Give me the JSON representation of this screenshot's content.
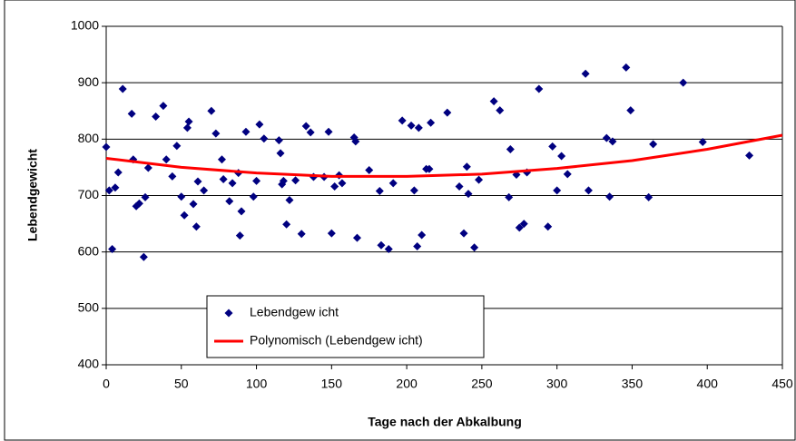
{
  "chart_data": {
    "type": "scatter",
    "xlabel": "Tage nach der Abkalbung",
    "ylabel": "Lebendgewicht",
    "xlim": [
      0,
      450
    ],
    "xticks": [
      0,
      50,
      100,
      150,
      200,
      250,
      300,
      350,
      400,
      450
    ],
    "ylim": [
      400,
      1000
    ],
    "yticks": [
      400,
      500,
      600,
      700,
      800,
      900,
      1000
    ],
    "grid": true,
    "legend": "lower left",
    "series": [
      {
        "name": "Lebendgew icht",
        "color": "#000080",
        "type": "scatter",
        "x": [
          0,
          2,
          4,
          6,
          8,
          11,
          17,
          18,
          20,
          22,
          25,
          26,
          28,
          33,
          38,
          40,
          44,
          47,
          50,
          52,
          54,
          55,
          58,
          60,
          61,
          65,
          70,
          73,
          77,
          78,
          82,
          84,
          88,
          89,
          90,
          93,
          98,
          100,
          102,
          105,
          115,
          116,
          117,
          118,
          120,
          122,
          126,
          130,
          133,
          136,
          138,
          145,
          148,
          150,
          152,
          155,
          157,
          165,
          166,
          167,
          175,
          182,
          183,
          188,
          191,
          197,
          203,
          205,
          207,
          208,
          210,
          213,
          215,
          216,
          227,
          235,
          238,
          240,
          241,
          245,
          248,
          258,
          262,
          268,
          269,
          273,
          275,
          278,
          280,
          288,
          294,
          297,
          300,
          303,
          307,
          319,
          321,
          333,
          335,
          337,
          346,
          349,
          361,
          364,
          384,
          397,
          428
        ],
        "values": [
          786,
          709,
          605,
          714,
          741,
          889,
          845,
          764,
          681,
          686,
          591,
          697,
          749,
          840,
          859,
          764,
          734,
          788,
          698,
          665,
          820,
          831,
          685,
          645,
          725,
          709,
          850,
          810,
          764,
          729,
          690,
          722,
          740,
          629,
          672,
          813,
          698,
          726,
          826,
          801,
          798,
          775,
          720,
          726,
          649,
          692,
          727,
          632,
          823,
          812,
          733,
          733,
          813,
          633,
          716,
          736,
          722,
          803,
          796,
          625,
          745,
          708,
          612,
          605,
          722,
          833,
          824,
          709,
          610,
          820,
          630,
          747,
          747,
          829,
          847,
          716,
          633,
          751,
          703,
          608,
          728,
          867,
          851,
          697,
          782,
          737,
          643,
          650,
          741,
          889,
          645,
          787,
          709,
          770,
          738,
          916,
          709,
          802,
          698,
          796,
          927,
          851,
          697,
          791,
          900,
          795,
          771
        ]
      },
      {
        "name": "Polynomisch (Lebendgew icht)",
        "color": "#ff0000",
        "type": "line",
        "x": [
          0,
          50,
          100,
          150,
          200,
          250,
          300,
          350,
          400,
          450
        ],
        "values": [
          766,
          750,
          740,
          734,
          734,
          738,
          748,
          762,
          782,
          807
        ]
      }
    ]
  }
}
